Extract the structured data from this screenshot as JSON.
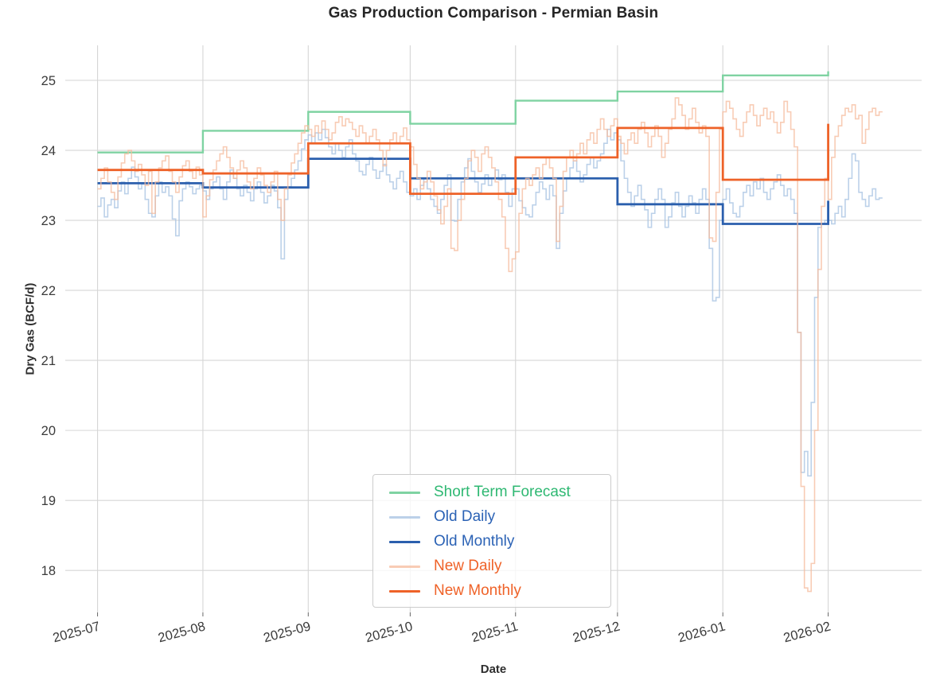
{
  "chart_data": {
    "type": "line",
    "title": "Gas Production Comparison - Permian Basin",
    "xlabel": "Date",
    "ylabel": "Dry Gas (BCF/d)",
    "x_tick_labels": [
      "2025-07",
      "2025-08",
      "2025-09",
      "2025-10",
      "2025-11",
      "2025-12",
      "2026-01",
      "2026-02"
    ],
    "y_ticks": [
      18,
      19,
      20,
      21,
      22,
      23,
      24,
      25
    ],
    "ylim": [
      17.4,
      25.5
    ],
    "xlim_days": [
      -9.5,
      242.5
    ],
    "month_starts_day_index": [
      0,
      31,
      62,
      92,
      123,
      153,
      184,
      215
    ],
    "daily_start_date": "2025-07-01",
    "grid": true,
    "grid_color": "#d6d6d6",
    "tick_label_color": "#3a3a3a",
    "legend_position": "lower center",
    "series": [
      {
        "name": "Short Term Forecast",
        "style": "monthly_step",
        "color": "#7fd3a2",
        "label_color": "#2eb872",
        "line_width": 2.4,
        "opacity": 1,
        "months": [
          "2025-07",
          "2025-08",
          "2025-09",
          "2025-10",
          "2025-11",
          "2025-12",
          "2026-01",
          "2026-02"
        ],
        "values": [
          23.97,
          24.28,
          24.55,
          24.38,
          24.71,
          24.84,
          25.07,
          25.13
        ]
      },
      {
        "name": "Old Daily",
        "style": "daily_step",
        "color": "#a6c1e2",
        "label_color": "#2b62b5",
        "line_width": 1.6,
        "opacity": 0.75,
        "values": [
          23.2,
          23.32,
          23.05,
          23.22,
          23.3,
          23.18,
          23.42,
          23.55,
          23.38,
          23.6,
          23.76,
          23.62,
          23.45,
          23.52,
          23.3,
          23.1,
          23.05,
          23.35,
          23.55,
          23.4,
          23.48,
          23.35,
          23.02,
          22.78,
          23.28,
          23.45,
          23.55,
          23.48,
          23.38,
          23.45,
          23.5,
          23.42,
          23.3,
          23.45,
          23.55,
          23.62,
          23.45,
          23.3,
          23.55,
          23.72,
          23.6,
          23.45,
          23.35,
          23.5,
          23.4,
          23.28,
          23.45,
          23.55,
          23.4,
          23.25,
          23.35,
          23.5,
          23.42,
          23.18,
          22.45,
          23.3,
          23.48,
          23.6,
          23.72,
          23.85,
          24.02,
          24.15,
          24.22,
          24.1,
          24.25,
          24.15,
          24.3,
          24.18,
          24.05,
          23.95,
          24.1,
          24.0,
          23.9,
          24.05,
          24.15,
          23.95,
          23.85,
          23.7,
          23.65,
          23.8,
          23.9,
          23.72,
          23.6,
          23.7,
          23.8,
          23.65,
          23.55,
          23.45,
          23.6,
          23.7,
          23.55,
          23.4,
          23.35,
          23.45,
          23.3,
          23.5,
          23.6,
          23.45,
          23.3,
          23.2,
          23.1,
          23.3,
          23.5,
          23.65,
          23.0,
          22.99,
          23.3,
          23.55,
          23.75,
          23.88,
          23.7,
          23.55,
          23.4,
          23.52,
          23.65,
          23.5,
          23.6,
          23.72,
          23.58,
          23.65,
          23.4,
          23.2,
          23.45,
          23.45,
          23.28,
          23.18,
          23.08,
          23.05,
          23.22,
          23.4,
          23.55,
          23.45,
          23.3,
          23.5,
          23.35,
          22.6,
          23.1,
          23.42,
          23.6,
          23.75,
          23.85,
          23.7,
          23.55,
          23.65,
          23.8,
          23.9,
          23.75,
          23.85,
          23.95,
          24.1,
          24.3,
          24.15,
          24.25,
          24.15,
          23.85,
          23.6,
          23.4,
          23.2,
          23.35,
          23.5,
          23.3,
          23.15,
          22.9,
          23.1,
          23.3,
          23.45,
          23.3,
          22.9,
          23.05,
          23.25,
          23.4,
          23.2,
          23.05,
          23.2,
          23.35,
          23.25,
          23.1,
          23.3,
          23.45,
          23.3,
          22.6,
          21.85,
          21.9,
          23.0,
          23.3,
          23.45,
          23.25,
          23.1,
          23.05,
          23.2,
          23.4,
          23.5,
          23.35,
          23.55,
          23.45,
          23.6,
          23.4,
          23.3,
          23.45,
          23.55,
          23.65,
          23.5,
          23.35,
          23.45,
          23.3,
          23.1,
          21.4,
          19.4,
          19.7,
          19.35,
          20.4,
          21.9,
          22.9,
          22.95,
          23.0,
          23.0,
          22.95,
          23.1,
          23.2,
          23.05,
          23.3,
          23.6,
          23.95,
          23.85,
          23.4,
          23.3,
          23.2,
          23.35,
          23.45,
          23.3,
          23.32
        ]
      },
      {
        "name": "Old Monthly",
        "style": "monthly_step",
        "color": "#2b5fad",
        "label_color": "#2b62b5",
        "line_width": 2.8,
        "opacity": 1,
        "months": [
          "2025-07",
          "2025-08",
          "2025-09",
          "2025-10",
          "2025-11",
          "2025-12",
          "2026-01",
          "2026-02"
        ],
        "values": [
          23.53,
          23.47,
          23.88,
          23.6,
          23.6,
          23.23,
          22.95,
          23.28
        ]
      },
      {
        "name": "New Daily",
        "style": "daily_step",
        "color": "#f5bb9c",
        "label_color": "#ef6228",
        "line_width": 1.6,
        "opacity": 0.75,
        "values": [
          23.45,
          23.6,
          23.75,
          23.55,
          23.4,
          23.3,
          23.62,
          23.82,
          23.95,
          24.0,
          23.85,
          23.7,
          23.8,
          23.65,
          23.5,
          23.7,
          23.1,
          23.55,
          23.75,
          23.85,
          23.92,
          23.7,
          23.55,
          23.4,
          23.62,
          23.78,
          23.85,
          23.7,
          23.6,
          23.76,
          23.65,
          23.05,
          23.35,
          23.58,
          23.72,
          23.85,
          23.95,
          24.05,
          23.9,
          23.75,
          23.6,
          23.72,
          23.85,
          23.75,
          23.55,
          23.45,
          23.6,
          23.75,
          23.65,
          23.5,
          23.4,
          23.55,
          23.7,
          23.3,
          23.0,
          23.45,
          23.65,
          23.82,
          23.95,
          24.1,
          24.25,
          24.35,
          24.3,
          24.2,
          24.35,
          24.25,
          24.42,
          24.3,
          24.15,
          24.25,
          24.4,
          24.48,
          24.35,
          24.45,
          24.4,
          24.3,
          24.2,
          24.35,
          24.25,
          24.1,
          24.2,
          24.3,
          24.15,
          24.0,
          23.78,
          24.0,
          24.15,
          24.25,
          24.1,
          24.2,
          24.32,
          24.15,
          24.05,
          23.8,
          23.6,
          23.45,
          23.55,
          23.7,
          23.55,
          23.35,
          23.15,
          22.95,
          23.2,
          23.45,
          22.6,
          22.57,
          23.0,
          23.3,
          23.6,
          23.85,
          24.0,
          23.9,
          23.7,
          23.95,
          24.05,
          23.9,
          23.75,
          23.55,
          23.3,
          23.05,
          22.6,
          22.27,
          22.45,
          22.55,
          23.1,
          23.45,
          23.6,
          23.5,
          23.65,
          23.75,
          23.6,
          23.8,
          23.9,
          23.75,
          23.6,
          22.7,
          23.2,
          23.7,
          23.9,
          24.0,
          23.85,
          23.95,
          24.1,
          23.95,
          24.15,
          24.25,
          24.1,
          24.3,
          24.45,
          24.3,
          24.2,
          24.35,
          24.45,
          24.2,
          24.1,
          23.95,
          24.15,
          24.25,
          24.1,
          24.3,
          24.4,
          24.25,
          24.05,
          24.2,
          24.35,
          24.2,
          23.9,
          24.1,
          24.3,
          24.45,
          24.75,
          24.65,
          24.5,
          24.3,
          24.45,
          24.6,
          24.4,
          24.25,
          24.35,
          24.2,
          22.75,
          22.7,
          23.4,
          24.3,
          24.55,
          24.7,
          24.6,
          24.45,
          24.3,
          24.2,
          24.4,
          24.55,
          24.65,
          24.5,
          24.35,
          24.5,
          24.6,
          24.45,
          24.55,
          24.4,
          24.25,
          24.4,
          24.7,
          24.55,
          24.3,
          24.05,
          21.4,
          19.2,
          17.75,
          17.7,
          18.1,
          20.0,
          22.3,
          23.2,
          23.6,
          23.3,
          23.9,
          24.2,
          24.35,
          24.5,
          24.6,
          24.55,
          24.65,
          24.45,
          24.5,
          24.1,
          24.3,
          24.55,
          24.6,
          24.5,
          24.55
        ]
      },
      {
        "name": "New Monthly",
        "style": "monthly_step",
        "color": "#ee6228",
        "label_color": "#ef6228",
        "line_width": 2.8,
        "opacity": 1,
        "months": [
          "2025-07",
          "2025-08",
          "2025-09",
          "2025-10",
          "2025-11",
          "2025-12",
          "2026-01",
          "2026-02"
        ],
        "values": [
          23.72,
          23.67,
          24.1,
          23.38,
          23.9,
          24.32,
          23.58,
          24.38
        ]
      }
    ]
  }
}
